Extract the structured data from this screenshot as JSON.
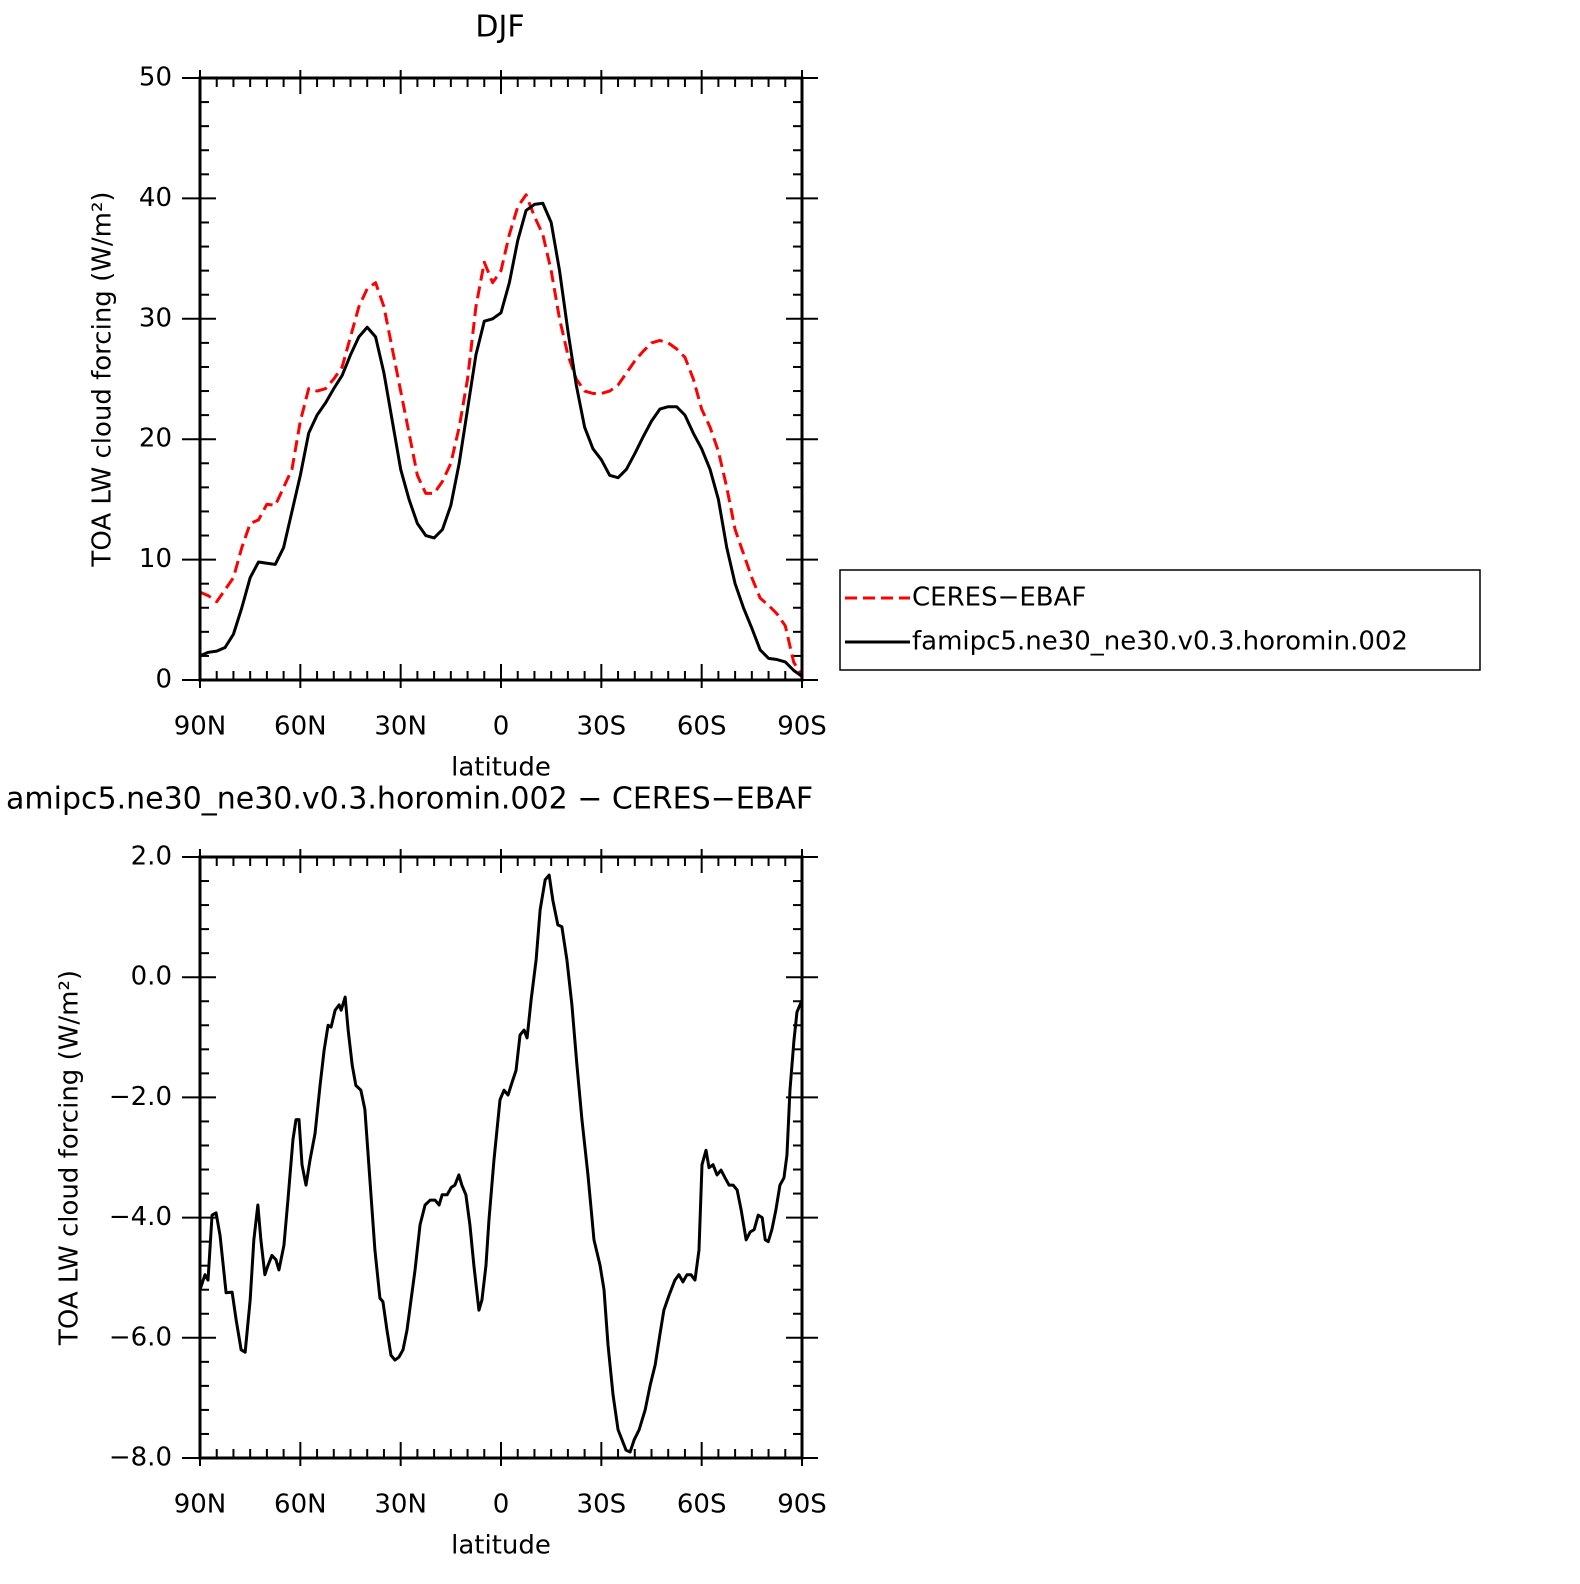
{
  "chart_data": [
    {
      "type": "line",
      "title": "DJF",
      "x_label": "latitude",
      "y_label": "TOA LW cloud forcing (W/m²)",
      "x": [
        90,
        87.5,
        85,
        82.5,
        80,
        77.5,
        75,
        72.5,
        70,
        67.5,
        65,
        62.5,
        60,
        57.5,
        55,
        52.5,
        50,
        47.5,
        45,
        42.5,
        40,
        37.5,
        35,
        32.5,
        30,
        27.5,
        25,
        22.5,
        20,
        17.5,
        15,
        12.5,
        10,
        7.5,
        5,
        2.5,
        0,
        -2.5,
        -5,
        -7.5,
        -10,
        -12.5,
        -15,
        -17.5,
        -20,
        -22.5,
        -25,
        -27.5,
        -30,
        -32.5,
        -35,
        -37.5,
        -40,
        -42.5,
        -45,
        -47.5,
        -50,
        -52.5,
        -55,
        -57.5,
        -60,
        -62.5,
        -65,
        -67.5,
        -70,
        -72.5,
        -75,
        -77.5,
        -80,
        -82.5,
        -85,
        -87.5,
        -90
      ],
      "series": [
        {
          "name": "CERES−EBAF",
          "color": "#ff0000",
          "line_style": "dashed",
          "values": [
            7.3,
            7.0,
            6.5,
            7.5,
            8.5,
            11,
            13,
            13.3,
            14.6,
            14.5,
            16,
            17.5,
            21.5,
            24.2,
            24,
            24.2,
            25,
            26,
            28.5,
            31,
            32.5,
            33.0,
            31,
            27.5,
            24,
            20.5,
            17,
            15.5,
            15.5,
            16.5,
            18,
            21,
            25,
            31,
            34.7,
            33,
            34,
            37,
            39.3,
            40.3,
            38.5,
            37,
            34,
            30,
            27,
            25,
            24,
            23.8,
            23.8,
            24,
            24.5,
            25.5,
            26.5,
            27.3,
            28,
            28.2,
            28,
            27.5,
            26.8,
            25,
            22.5,
            21,
            19,
            16,
            12.5,
            10.5,
            8.5,
            6.8,
            6.2,
            5.5,
            4.5,
            1.5,
            0.3
          ]
        },
        {
          "name": "famipc5.ne30_ne30.v0.3.horomin.002",
          "color": "#000000",
          "line_style": "solid",
          "values": [
            2.0,
            2.3,
            2.4,
            2.7,
            3.8,
            6,
            8.5,
            9.8,
            9.7,
            9.6,
            11,
            14,
            17,
            20.5,
            22,
            23,
            24.2,
            25.3,
            27,
            28.5,
            29.3,
            28.5,
            25.5,
            21.5,
            17.5,
            15,
            13,
            12,
            11.8,
            12.5,
            14.5,
            18,
            22.5,
            27,
            29.8,
            30,
            30.5,
            33,
            36.5,
            39,
            39.5,
            39.6,
            38,
            34,
            29,
            24.5,
            21,
            19.2,
            18.3,
            17,
            16.8,
            17.5,
            18.8,
            20.2,
            21.5,
            22.5,
            22.7,
            22.7,
            22,
            20.5,
            19.2,
            17.5,
            15,
            11,
            8,
            6,
            4.3,
            2.5,
            1.8,
            1.7,
            1.5,
            0.8,
            0.3
          ]
        }
      ],
      "xlim": [
        90,
        -90
      ],
      "xticks": [
        {
          "value": 90,
          "label": "90N"
        },
        {
          "value": 60,
          "label": "60N"
        },
        {
          "value": 30,
          "label": "30N"
        },
        0,
        {
          "value": -30,
          "label": "30S"
        },
        {
          "value": -60,
          "label": "60S"
        },
        {
          "value": -90,
          "label": "90S"
        }
      ],
      "ylim": [
        0,
        50
      ],
      "yticks": [
        0,
        10,
        20,
        30,
        40,
        50
      ],
      "legend": "right"
    },
    {
      "type": "line",
      "title": "amipc5.ne30_ne30.v0.3.horomin.002 − CERES−EBAF",
      "x_label": "latitude",
      "y_label": "TOA LW cloud forcing (W/m²)",
      "x": [
        90,
        88.5,
        87.6,
        86.4,
        85.2,
        84.0,
        82.2,
        80.4,
        79.2,
        77.7,
        76.5,
        75.0,
        73.9,
        72.7,
        71.8,
        70.6,
        69.7,
        68.5,
        67.3,
        66.4,
        64.9,
        63.7,
        62.2,
        61.3,
        60.4,
        59.5,
        58.3,
        57.1,
        55.6,
        54.1,
        52.9,
        51.7,
        50.8,
        49.6,
        48.4,
        47.8,
        46.6,
        45.7,
        44.5,
        43.4,
        41.9,
        40.7,
        39.2,
        37.7,
        36.2,
        35.3,
        34.1,
        32.9,
        31.7,
        30.5,
        29.3,
        28.1,
        26.9,
        25.7,
        24.2,
        22.7,
        21.2,
        19.7,
        18.5,
        17.6,
        16.1,
        14.9,
        13.8,
        12.6,
        11.7,
        10.5,
        9.3,
        8.1,
        6.6,
        5.7,
        4.5,
        3.6,
        2.1,
        0.3,
        -0.9,
        -2.1,
        -3.3,
        -4.5,
        -5.7,
        -6.9,
        -7.8,
        -9.0,
        -10.5,
        -11.7,
        -13.2,
        -14.4,
        -15.5,
        -17.0,
        -18.2,
        -19.7,
        -21.2,
        -22.7,
        -24.2,
        -26.0,
        -27.8,
        -29.6,
        -30.8,
        -32.0,
        -33.5,
        -35.0,
        -36.2,
        -37.4,
        -38.6,
        -39.8,
        -41.3,
        -43.1,
        -44.6,
        -46.1,
        -47.5,
        -48.7,
        -50.2,
        -52.0,
        -53.2,
        -54.4,
        -55.6,
        -56.8,
        -58.0,
        -59.2,
        -60.1,
        -61.3,
        -62.2,
        -63.4,
        -64.6,
        -65.8,
        -67.0,
        -68.2,
        -69.4,
        -70.6,
        -71.8,
        -73.3,
        -74.5,
        -75.7,
        -76.9,
        -78.1,
        -79.0,
        -79.9,
        -81.0,
        -82.2,
        -83.4,
        -84.6,
        -85.5,
        -86.4,
        -87.6,
        -88.5,
        -90
      ],
      "values": [
        -5.2,
        -4.95,
        -5.04,
        -3.96,
        -3.92,
        -4.3,
        -5.25,
        -5.24,
        -5.7,
        -6.2,
        -6.24,
        -5.37,
        -4.37,
        -3.79,
        -4.37,
        -4.95,
        -4.8,
        -4.63,
        -4.7,
        -4.87,
        -4.46,
        -3.7,
        -2.7,
        -2.37,
        -2.37,
        -3.12,
        -3.46,
        -3.04,
        -2.6,
        -1.8,
        -1.22,
        -0.8,
        -0.83,
        -0.55,
        -0.46,
        -0.55,
        -0.33,
        -0.88,
        -1.46,
        -1.8,
        -1.88,
        -2.2,
        -3.37,
        -4.54,
        -5.34,
        -5.4,
        -5.87,
        -6.29,
        -6.37,
        -6.32,
        -6.2,
        -5.87,
        -5.37,
        -4.87,
        -4.12,
        -3.79,
        -3.71,
        -3.71,
        -3.79,
        -3.62,
        -3.62,
        -3.5,
        -3.46,
        -3.29,
        -3.46,
        -3.62,
        -4.12,
        -4.8,
        -5.54,
        -5.37,
        -4.8,
        -4.04,
        -3.04,
        -2.04,
        -1.88,
        -1.96,
        -1.75,
        -1.55,
        -0.96,
        -0.88,
        -1.01,
        -0.38,
        0.29,
        1.12,
        1.62,
        1.7,
        1.28,
        0.87,
        0.84,
        0.29,
        -0.46,
        -1.46,
        -2.37,
        -3.29,
        -4.37,
        -4.79,
        -5.2,
        -6.12,
        -6.95,
        -7.53,
        -7.7,
        -7.87,
        -7.9,
        -7.7,
        -7.53,
        -7.2,
        -6.79,
        -6.45,
        -5.95,
        -5.54,
        -5.3,
        -5.04,
        -4.95,
        -5.07,
        -4.95,
        -4.95,
        -5.04,
        -4.54,
        -3.12,
        -2.88,
        -3.17,
        -3.12,
        -3.29,
        -3.21,
        -3.34,
        -3.46,
        -3.46,
        -3.54,
        -3.87,
        -4.37,
        -4.24,
        -4.2,
        -3.96,
        -4.0,
        -4.37,
        -4.4,
        -4.2,
        -3.87,
        -3.46,
        -3.34,
        -2.96,
        -1.88,
        -1.05,
        -0.58,
        -0.38
      ],
      "color": "#000000",
      "xlim": [
        90,
        -90
      ],
      "xticks": [
        {
          "value": 90,
          "label": "90N"
        },
        {
          "value": 60,
          "label": "60N"
        },
        {
          "value": 30,
          "label": "30N"
        },
        0,
        {
          "value": -30,
          "label": "30S"
        },
        {
          "value": -60,
          "label": "60S"
        },
        {
          "value": -90,
          "label": "90S"
        }
      ],
      "ylim": [
        -8,
        2
      ],
      "yticks": [
        {
          "value": -8,
          "label": "−8.0"
        },
        {
          "value": -6,
          "label": "−6.0"
        },
        {
          "value": -4,
          "label": "−4.0"
        },
        {
          "value": -2,
          "label": "−2.0"
        },
        {
          "value": 0,
          "label": "0.0"
        },
        {
          "value": 2,
          "label": "2.0"
        }
      ]
    }
  ]
}
